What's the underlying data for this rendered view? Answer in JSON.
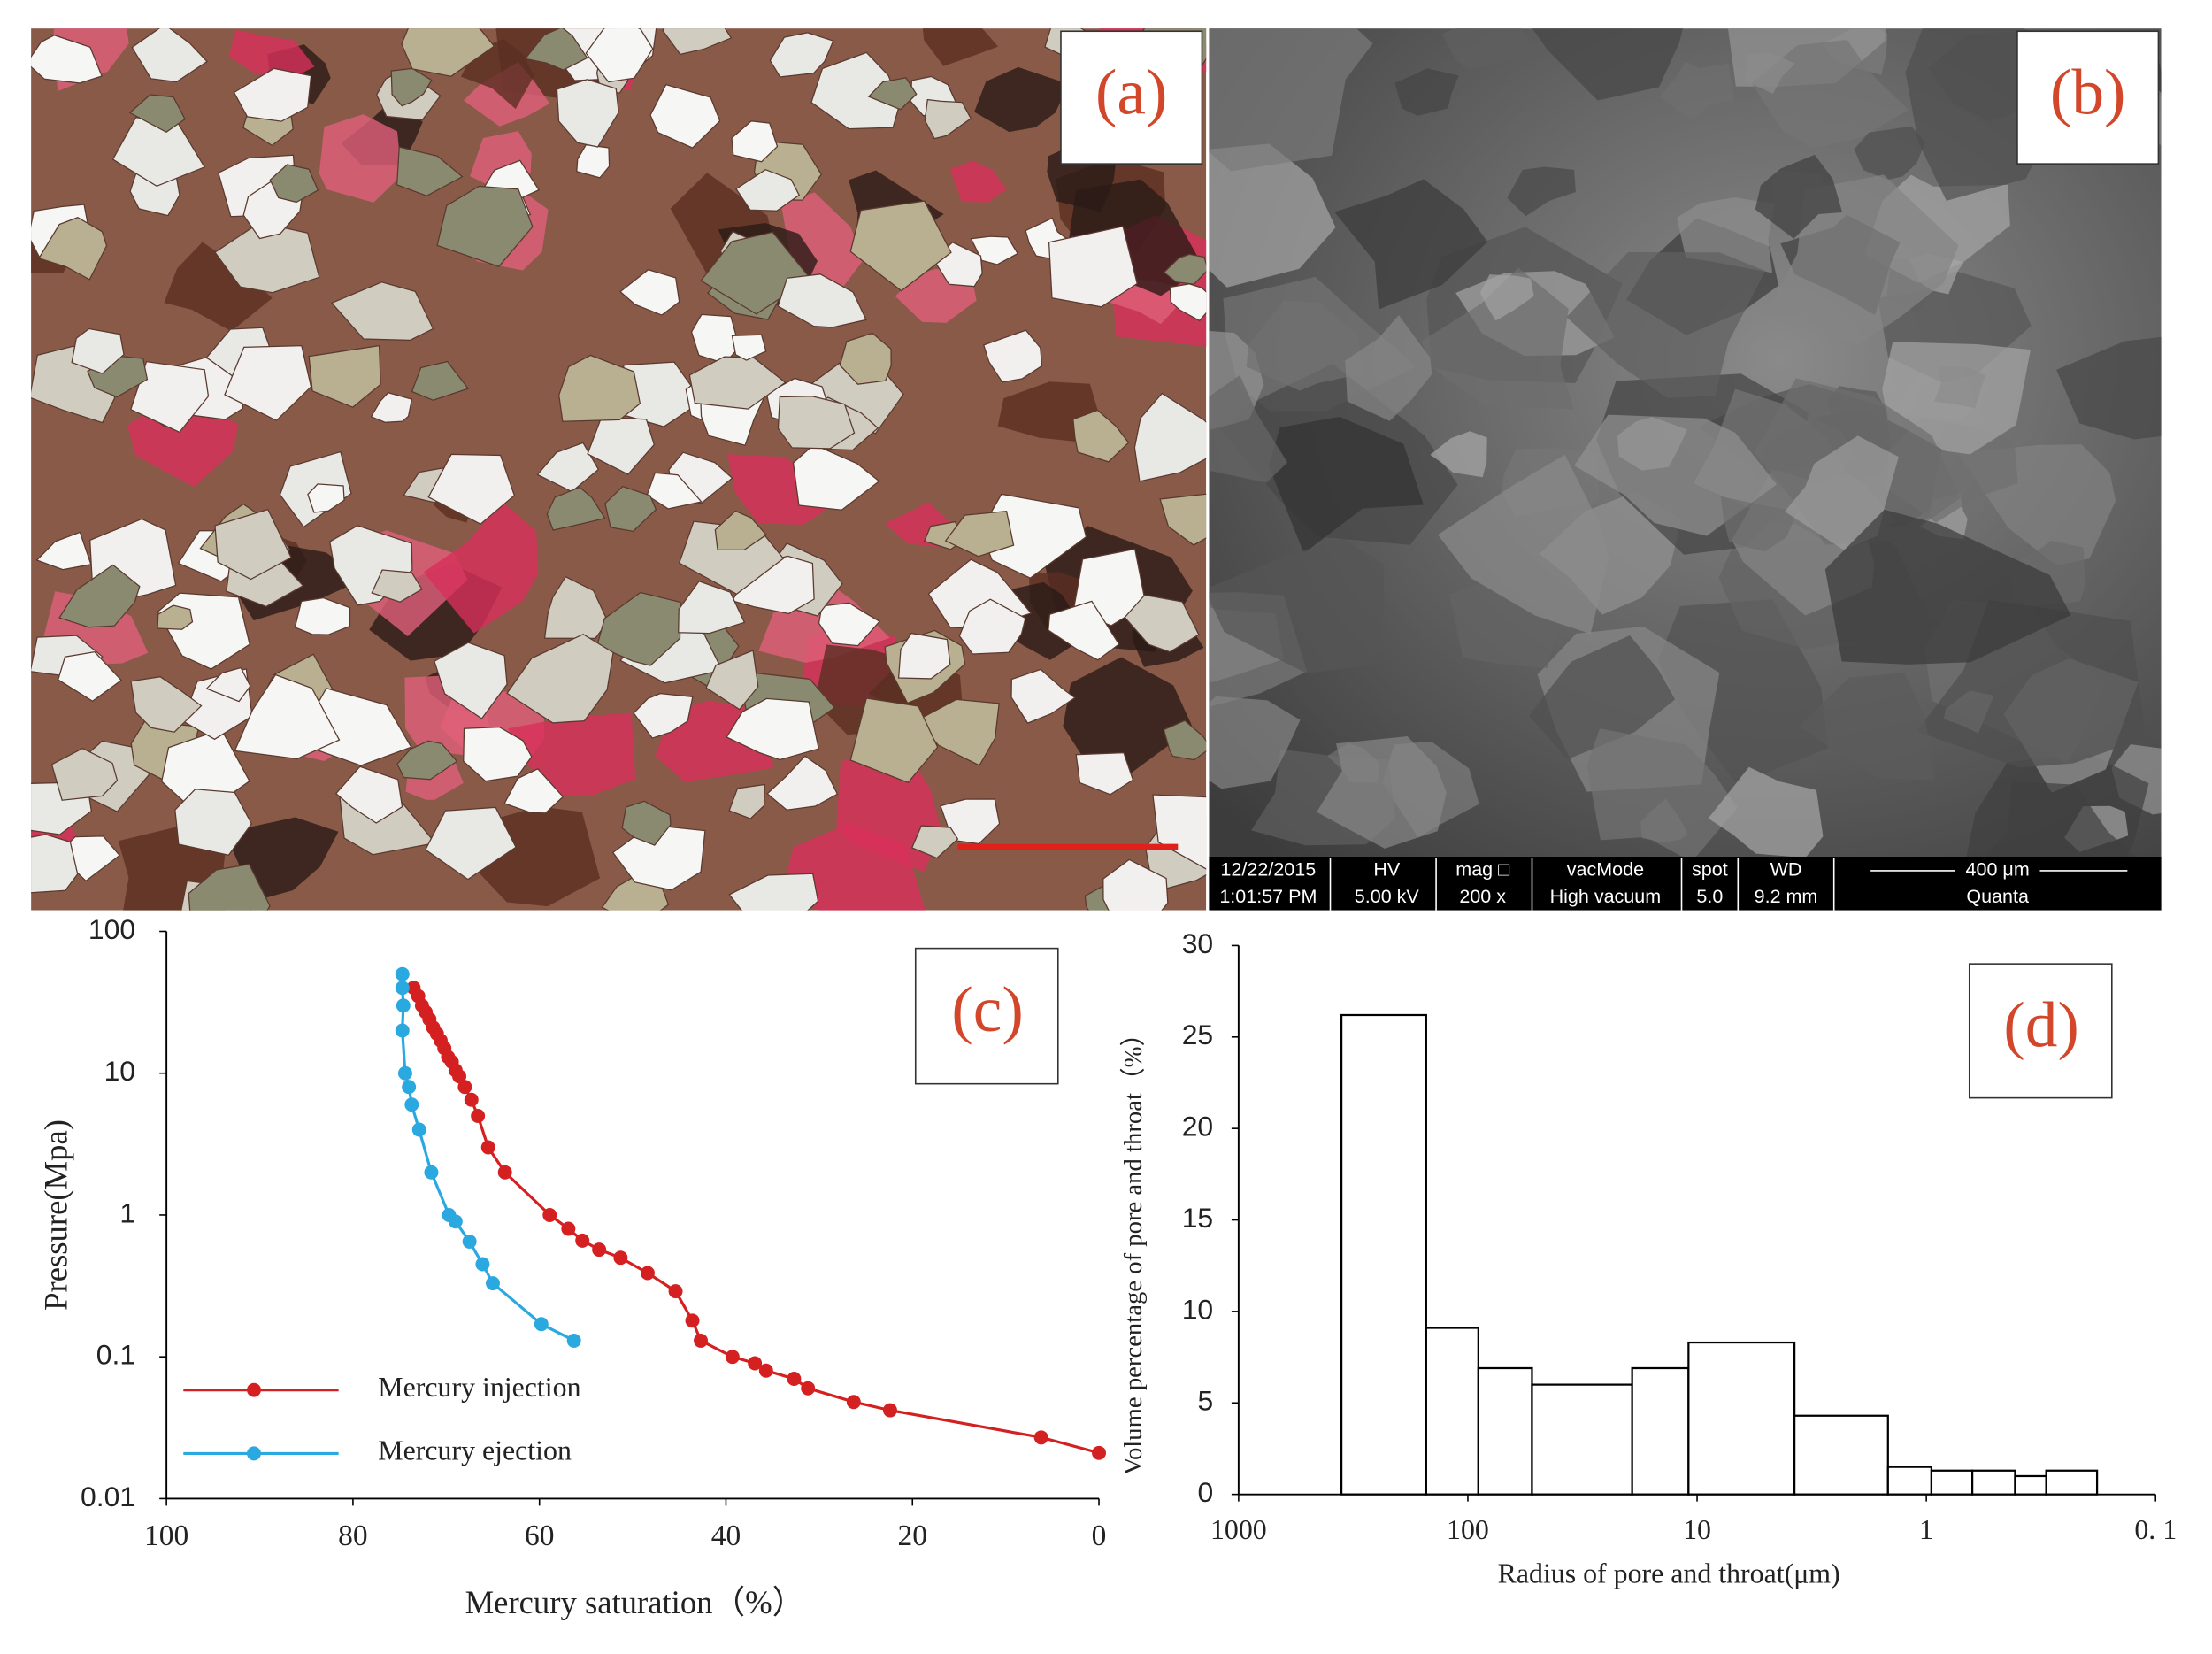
{
  "panels": {
    "a": {
      "label": "(a)"
    },
    "b": {
      "label": "(b)",
      "info": [
        [
          "12/22/2015",
          "1:01:57 PM"
        ],
        [
          "HV",
          "5.00 kV"
        ],
        [
          "mag □",
          "200 x"
        ],
        [
          "vacMode",
          "High vacuum"
        ],
        [
          "spot",
          "5.0"
        ],
        [
          "WD",
          "9.2 mm"
        ],
        [
          "400 μm",
          "Quanta"
        ]
      ]
    }
  },
  "chart_data": [
    {
      "type": "line",
      "panel_label": "(c)",
      "y_label": "Pressure(Mpa)",
      "x_label": "Mercury saturation（%）",
      "yscale": "log",
      "ylim": [
        0.01,
        100
      ],
      "yticks": [
        100,
        10,
        1,
        0.1,
        0.01
      ],
      "xlim": [
        100,
        0
      ],
      "xticks": [
        100,
        80,
        60,
        40,
        20,
        0
      ],
      "legend": "lower left",
      "series": [
        {
          "name": "Mercury injection",
          "color": "#d42020",
          "x": [
            73.5,
            73,
            72.6,
            72.2,
            71.8,
            71.4,
            71,
            70.6,
            70.2,
            69.8,
            69.4,
            69,
            68.6,
            68,
            67.3,
            66.6,
            65.5,
            63.7,
            58.9,
            56.9,
            55.4,
            53.6,
            51.3,
            48.4,
            45.4,
            43.6,
            42.7,
            39.3,
            36.9,
            35.7,
            32.7,
            31.2,
            26.3,
            22.4,
            6.2,
            0
          ],
          "values": [
            40,
            35,
            30,
            27,
            24,
            21,
            19,
            17,
            15,
            13,
            12,
            10.5,
            9.5,
            8,
            6.5,
            5,
            3,
            2,
            1,
            0.8,
            0.66,
            0.57,
            0.5,
            0.39,
            0.29,
            0.18,
            0.13,
            0.1,
            0.09,
            0.08,
            0.07,
            0.06,
            0.048,
            0.042,
            0.027,
            0.021
          ]
        },
        {
          "name": "Mercury ejection",
          "color": "#2aa8e0",
          "x": [
            74.7,
            74.7,
            74.6,
            74.7,
            74.4,
            74,
            73.7,
            72.9,
            71.6,
            69.7,
            69,
            67.5,
            66.1,
            65,
            59.8,
            56.3
          ],
          "values": [
            50,
            40,
            30,
            20,
            10,
            8,
            6,
            4,
            2,
            1,
            0.9,
            0.65,
            0.45,
            0.33,
            0.17,
            0.13
          ]
        }
      ]
    },
    {
      "type": "histogram",
      "panel_label": "(d)",
      "y_label": "Volume percentage of pore and throat（%）",
      "x_label": "Radius of pore and throat(μm)",
      "xscale": "log",
      "xlim": [
        1000,
        0.1
      ],
      "xticks": [
        1000,
        100,
        10,
        1,
        {
          "value": 0.1,
          "label": "0. 1"
        }
      ],
      "ylim": [
        0,
        30
      ],
      "yticks": [
        0,
        5,
        10,
        15,
        20,
        25,
        30
      ],
      "color": "#ffffff",
      "bins": [
        356,
        152,
        90,
        52.5,
        19.2,
        10.9,
        3.76,
        1.47,
        0.95,
        0.63,
        0.41,
        0.3,
        0.18
      ],
      "values": [
        26.2,
        9.1,
        6.9,
        6.0,
        6.9,
        8.3,
        4.3,
        1.5,
        1.3,
        1.3,
        1.0,
        1.3
      ]
    }
  ]
}
